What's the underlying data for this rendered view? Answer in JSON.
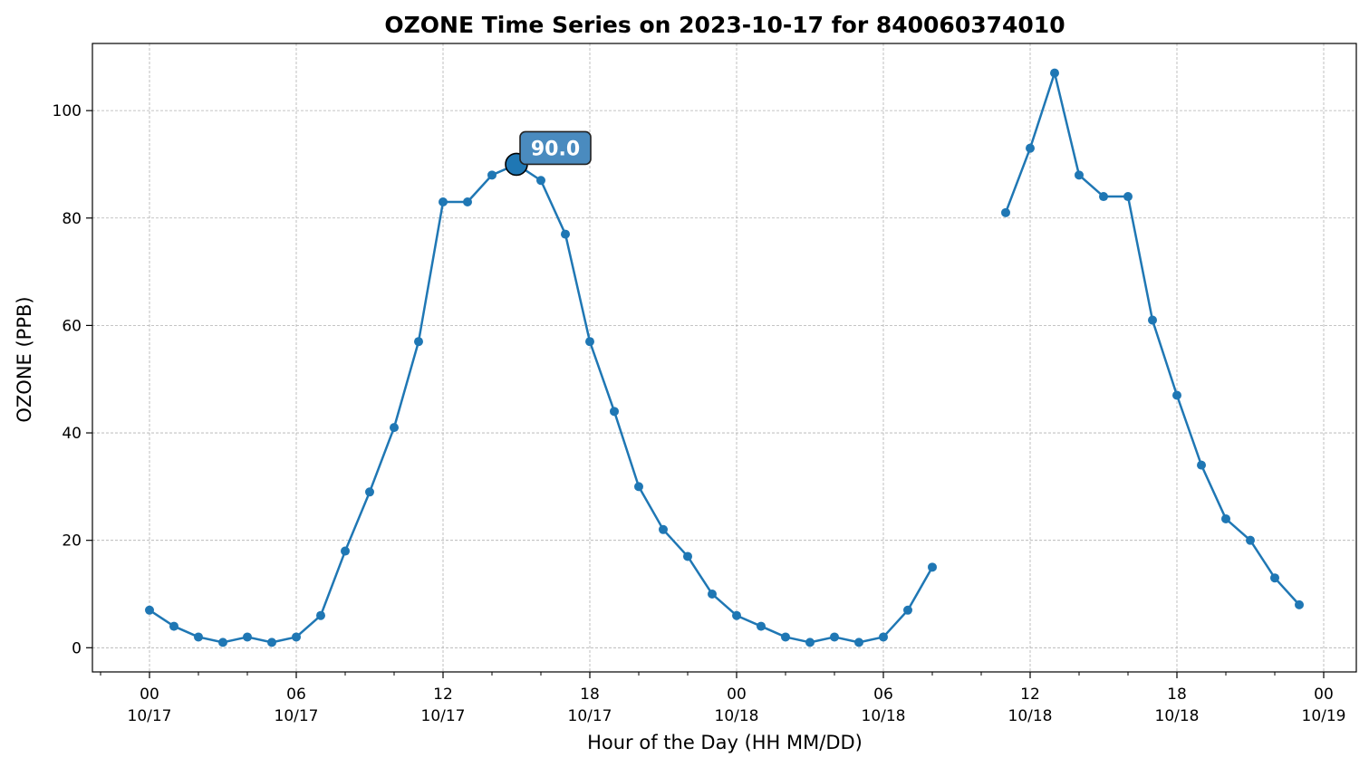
{
  "chart_data": {
    "type": "line",
    "title": "OZONE Time Series on 2023-10-17 for 840060374010",
    "xlabel": "Hour of the Day (HH MM/DD)",
    "ylabel": "OZONE (PPB)",
    "ylim": [
      -4.5,
      112.5
    ],
    "xlim": [
      "2023-10-16 21:40",
      "2023-10-19 01:20"
    ],
    "grid": true,
    "x_ticks": [
      {
        "t": "2023-10-17 00:00",
        "hour": "00",
        "date": "10/17"
      },
      {
        "t": "2023-10-17 06:00",
        "hour": "06",
        "date": "10/17"
      },
      {
        "t": "2023-10-17 12:00",
        "hour": "12",
        "date": "10/17"
      },
      {
        "t": "2023-10-17 18:00",
        "hour": "18",
        "date": "10/17"
      },
      {
        "t": "2023-10-18 00:00",
        "hour": "00",
        "date": "10/18"
      },
      {
        "t": "2023-10-18 06:00",
        "hour": "06",
        "date": "10/18"
      },
      {
        "t": "2023-10-18 12:00",
        "hour": "12",
        "date": "10/18"
      },
      {
        "t": "2023-10-18 18:00",
        "hour": "18",
        "date": "10/18"
      },
      {
        "t": "2023-10-19 00:00",
        "hour": "00",
        "date": "10/19"
      }
    ],
    "y_ticks": [
      0,
      20,
      40,
      60,
      80,
      100
    ],
    "series": [
      {
        "color": "#1f77b4",
        "points": [
          {
            "t": "2023-10-17 00:00",
            "v": 7
          },
          {
            "t": "2023-10-17 01:00",
            "v": 4
          },
          {
            "t": "2023-10-17 02:00",
            "v": 2
          },
          {
            "t": "2023-10-17 03:00",
            "v": 1
          },
          {
            "t": "2023-10-17 04:00",
            "v": 2
          },
          {
            "t": "2023-10-17 05:00",
            "v": 1
          },
          {
            "t": "2023-10-17 06:00",
            "v": 2
          },
          {
            "t": "2023-10-17 07:00",
            "v": 6
          },
          {
            "t": "2023-10-17 08:00",
            "v": 18
          },
          {
            "t": "2023-10-17 09:00",
            "v": 29
          },
          {
            "t": "2023-10-17 10:00",
            "v": 41
          },
          {
            "t": "2023-10-17 11:00",
            "v": 57
          },
          {
            "t": "2023-10-17 12:00",
            "v": 83
          },
          {
            "t": "2023-10-17 13:00",
            "v": 83
          },
          {
            "t": "2023-10-17 14:00",
            "v": 88
          },
          {
            "t": "2023-10-17 15:00",
            "v": 90
          },
          {
            "t": "2023-10-17 16:00",
            "v": 87
          },
          {
            "t": "2023-10-17 17:00",
            "v": 77
          },
          {
            "t": "2023-10-17 18:00",
            "v": 57
          },
          {
            "t": "2023-10-17 19:00",
            "v": 44
          },
          {
            "t": "2023-10-17 20:00",
            "v": 30
          },
          {
            "t": "2023-10-17 21:00",
            "v": 22
          },
          {
            "t": "2023-10-17 22:00",
            "v": 17
          },
          {
            "t": "2023-10-17 23:00",
            "v": 10
          },
          {
            "t": "2023-10-18 00:00",
            "v": 6
          },
          {
            "t": "2023-10-18 01:00",
            "v": 4
          },
          {
            "t": "2023-10-18 02:00",
            "v": 2
          },
          {
            "t": "2023-10-18 03:00",
            "v": 1
          },
          {
            "t": "2023-10-18 04:00",
            "v": 2
          },
          {
            "t": "2023-10-18 05:00",
            "v": 1
          },
          {
            "t": "2023-10-18 06:00",
            "v": 2
          },
          {
            "t": "2023-10-18 07:00",
            "v": 7
          },
          {
            "t": "2023-10-18 08:00",
            "v": 15
          },
          {
            "t": "2023-10-18 09:00",
            "v": null
          },
          {
            "t": "2023-10-18 10:00",
            "v": null
          },
          {
            "t": "2023-10-18 11:00",
            "v": 81
          },
          {
            "t": "2023-10-18 12:00",
            "v": 93
          },
          {
            "t": "2023-10-18 13:00",
            "v": 107
          },
          {
            "t": "2023-10-18 14:00",
            "v": 88
          },
          {
            "t": "2023-10-18 15:00",
            "v": 84
          },
          {
            "t": "2023-10-18 16:00",
            "v": 84
          },
          {
            "t": "2023-10-18 17:00",
            "v": 61
          },
          {
            "t": "2023-10-18 18:00",
            "v": 47
          },
          {
            "t": "2023-10-18 19:00",
            "v": 34
          },
          {
            "t": "2023-10-18 20:00",
            "v": 24
          },
          {
            "t": "2023-10-18 21:00",
            "v": 20
          },
          {
            "t": "2023-10-18 22:00",
            "v": 13
          },
          {
            "t": "2023-10-18 23:00",
            "v": 8
          }
        ]
      }
    ],
    "annotation": {
      "t": "2023-10-17 15:00",
      "v": 90,
      "label": "90.0",
      "box_color": "#4a8bbf"
    }
  }
}
